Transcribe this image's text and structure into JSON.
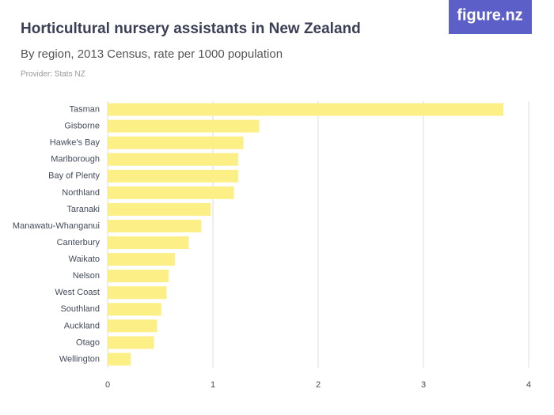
{
  "logo": "figure.nz",
  "chart_data": {
    "type": "bar",
    "orientation": "horizontal",
    "title": "Horticultural nursery assistants in New Zealand",
    "subtitle": "By region, 2013 Census, rate per 1000 population",
    "provider": "Provider: Stats NZ",
    "categories": [
      "Tasman",
      "Gisborne",
      "Hawke's Bay",
      "Marlborough",
      "Bay of Plenty",
      "Northland",
      "Taranaki",
      "Manawatu-Whanganui",
      "Canterbury",
      "Waikato",
      "Nelson",
      "West Coast",
      "Southland",
      "Auckland",
      "Otago",
      "Wellington"
    ],
    "values": [
      3.76,
      1.44,
      1.29,
      1.24,
      1.24,
      1.2,
      0.98,
      0.89,
      0.77,
      0.64,
      0.58,
      0.56,
      0.51,
      0.47,
      0.44,
      0.22
    ],
    "color": "#fbef85",
    "xlim": [
      0,
      4
    ],
    "xticks": [
      0,
      1,
      2,
      3,
      4
    ],
    "grid": true
  }
}
